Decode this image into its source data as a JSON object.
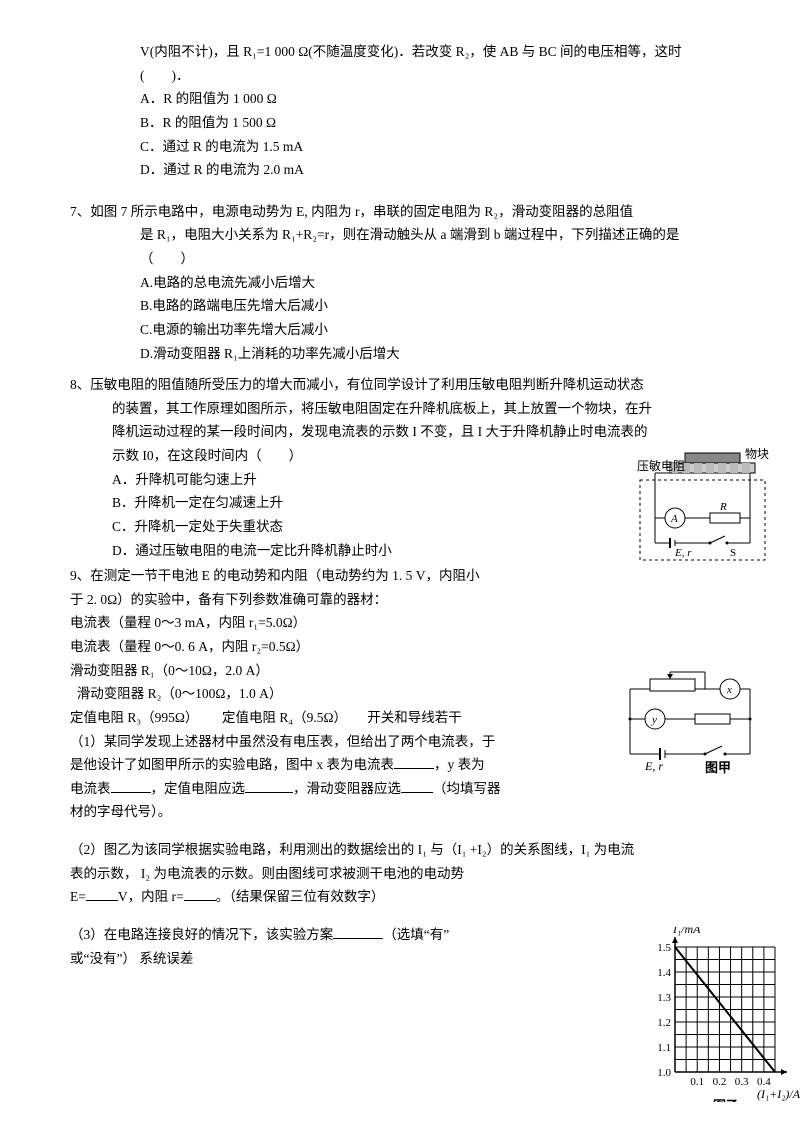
{
  "q6": {
    "line1": "V(内阻不计)，且 R₁=1 000  Ω(不随温度变化)．若改变 R₂，使 AB 与 BC 间的电压相等，这时",
    "line2": "(　　)．",
    "opts": [
      "A．R 的阻值为 1 000  Ω",
      "B．R 的阻值为 1 500  Ω",
      "C．通过 R 的电流为 1.5 mA",
      "D．通过 R 的电流为 2.0 mA"
    ]
  },
  "q7": {
    "head": "7、如图 7 所示电路中，电源电动势为 E, 内阻为 r，串联的固定电阻为 R₂，滑动变阻器的总阻值",
    "line2": "是 R₁，电阻大小关系为 R₁+R₂=r，则在滑动触头从 a 端滑到 b 端过程中，下列描述正确的是",
    "line3": "（　　）",
    "opts": [
      "A.电路的总电流先减小后增大",
      "B.电路的路端电压先增大后减小",
      "C.电源的输出功率先增大后减小",
      "D.滑动变阻器 R₁上消耗的功率先减小后增大"
    ]
  },
  "q8": {
    "head": "8、压敏电阻的阻值随所受压力的增大而减小，有位同学设计了利用压敏电阻判断升降机运动状态",
    "l2": "的装置，其工作原理如图所示，将压敏电阻固定在升降机底板上，其上放置一个物块，在升",
    "l3": "降机运动过程的某一段时间内，发现电流表的示数 I 不变，且 I 大于升降机静止时电流表的",
    "l4": "示数 I0，在这段时间内（　　）",
    "opts": [
      "A．升降机可能匀速上升",
      "B．升降机一定在匀减速上升",
      "C．升降机一定处于失重状态",
      "D．通过压敏电阻的电流一定比升降机静止时小"
    ],
    "fig": {
      "yamin": "压敏电阻",
      "wukuai": "物块",
      "a": "A",
      "r": "R",
      "er": "E, r",
      "s": "S"
    }
  },
  "q9": {
    "l1": "9、在测定一节干电池 E 的电动势和内阻（电动势约为 1. 5 V，内阻小",
    "l2": "于 2. 0Ω）的实验中，备有下列参数准确可靠的器材：",
    "l3": "电流表（量程 0～3 mA，内阻 r₁=5.0Ω）",
    "l4": "电流表（量程 0～0. 6 A，内阻 r₂=0.5Ω）",
    "l5": "滑动变阻器 R₁（0～10Ω，2.0 A）",
    "l6": "  滑动变阻器 R₂（0～100Ω，1.0 A）",
    "l7": "定值电阻 R₃（995Ω）       定值电阻 R₄（9.5Ω）      开关和导线若干",
    "p1a": "（1）某同学发现上述器材中虽然没有电压表，但给出了两个电流表，于",
    "p1b": "是他设计了如图甲所示的实验电路，图中 x 表为电流表",
    "p1b2": "，y 表为",
    "p1c": "电流表",
    "p1c2": "，定值电阻应选",
    "p1c3": "，滑动变阻器应选",
    "p1c4": "（均填写器",
    "p1d": "材的字母代号）。",
    "p2a": "（2）图乙为该同学根据实验电路，利用测出的数据绘出的 I₁ 与（I₁ +I₂）的关系图线，I₁ 为电流",
    "p2b": "表的示数， I₂ 为电流表的示数。则由图线可求被测干电池的电动势",
    "p2c": "E=",
    "p2c2": "V，内阻 r=",
    "p2c3": "。（结果保留三位有效数字）",
    "p3a": "（3）在电路连接良好的情况下，该实验方案",
    "p3a2": "（选填“有”",
    "p3b": "或“没有”） 系统误差",
    "fig1": {
      "x": "x",
      "y": "y",
      "er": "E, r",
      "caption": "图甲"
    }
  },
  "graph": {
    "ylabel": "I₁/mA",
    "yticks": [
      "1.5",
      "1.4",
      "1.3",
      "1.2",
      "1.1",
      "1.0"
    ],
    "xlabel": "(I₁+I₂)/A",
    "xticks": [
      "0.1",
      "0.2",
      "0.3",
      "0.4"
    ],
    "caption": "图乙",
    "grid_color": "#000",
    "bg": "#fff",
    "line_color": "#000",
    "x_range": [
      0,
      0.45
    ],
    "y_range": [
      1.0,
      1.5
    ],
    "line_pts": [
      [
        0,
        1.5
      ],
      [
        0.45,
        1.0
      ]
    ]
  }
}
